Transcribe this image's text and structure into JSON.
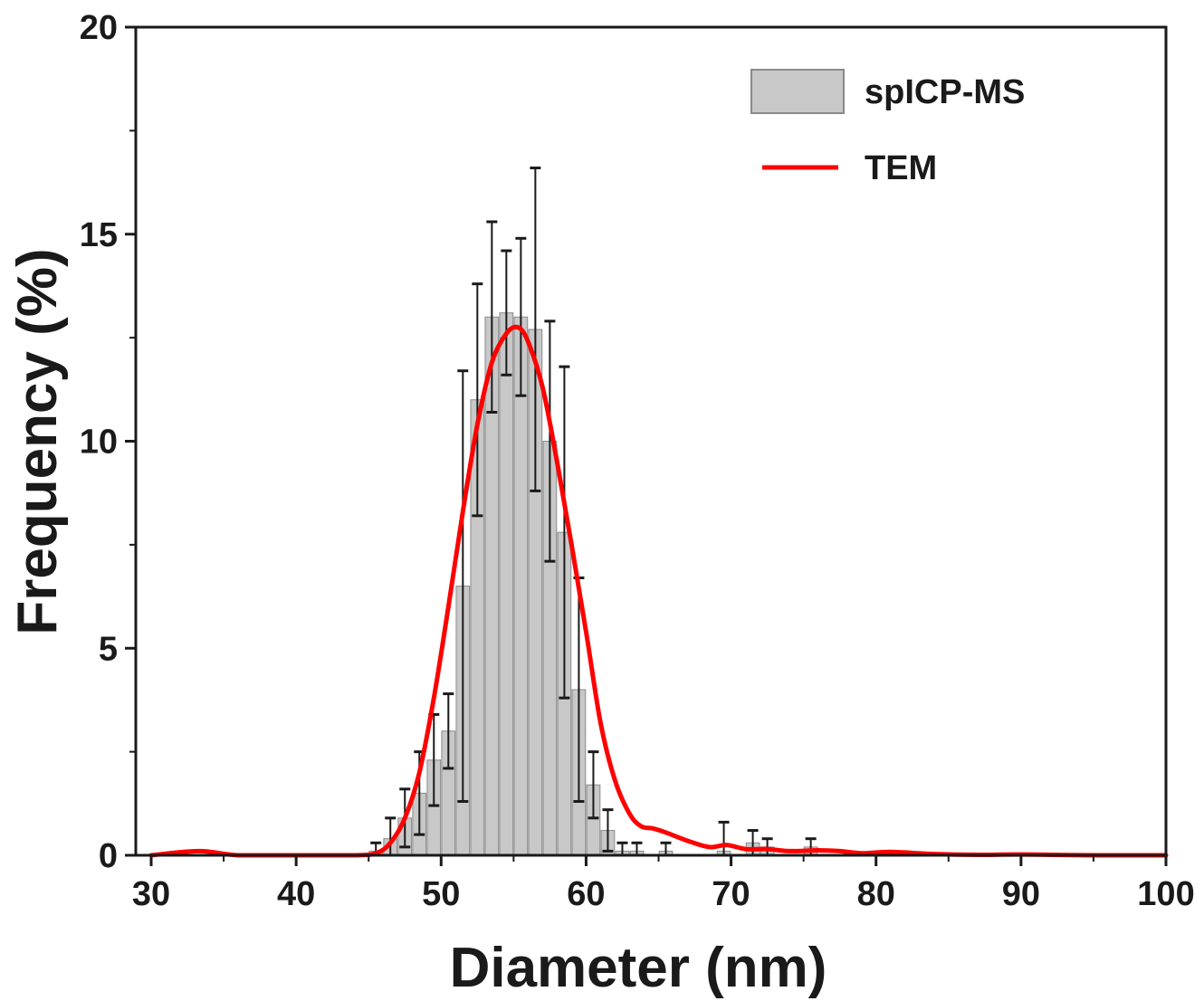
{
  "chart_data": {
    "type": "bar",
    "title": "",
    "xlabel": "Diameter (nm)",
    "ylabel": "Frequency (%)",
    "xlim": [
      30,
      100
    ],
    "ylim": [
      0,
      20
    ],
    "xticks": [
      30,
      40,
      50,
      60,
      70,
      80,
      90,
      100
    ],
    "yticks": [
      0,
      5,
      10,
      15,
      20
    ],
    "grid": false,
    "legend_position": "top-right",
    "colors": {
      "bars": "#c8c8c8",
      "bar_edge": "#8a8a8a",
      "line": "#ff0000",
      "axis": "#1a1a1a"
    },
    "series": [
      {
        "name": "spICP-MS",
        "kind": "histogram",
        "x": [
          45.5,
          46.5,
          47.5,
          48.5,
          49.5,
          50.5,
          51.5,
          52.5,
          53.5,
          54.5,
          55.5,
          56.5,
          57.5,
          58.5,
          59.5,
          60.5,
          61.5,
          62.5,
          63.5,
          65.5,
          69.5,
          71.5,
          72.5,
          75.5
        ],
        "values": [
          0.1,
          0.4,
          0.9,
          1.5,
          2.3,
          3.0,
          6.5,
          11.0,
          13.0,
          13.1,
          13.0,
          12.7,
          10.0,
          7.8,
          4.0,
          1.7,
          0.6,
          0.1,
          0.1,
          0.1,
          0.1,
          0.3,
          0.2,
          0.2
        ],
        "errors": [
          0.2,
          0.5,
          0.7,
          1.0,
          1.1,
          0.9,
          5.2,
          2.8,
          2.3,
          1.5,
          1.9,
          3.9,
          2.9,
          4.0,
          2.7,
          0.8,
          0.5,
          0.2,
          0.2,
          0.2,
          0.7,
          0.3,
          0.2,
          0.2
        ]
      },
      {
        "name": "TEM",
        "kind": "line",
        "x": [
          30,
          33.3,
          36,
          40,
          44,
          45.5,
          46.5,
          47.5,
          48.5,
          49.5,
          50.5,
          51.5,
          52.5,
          53.5,
          54.5,
          55.3,
          56,
          57,
          58,
          59,
          60,
          61,
          62,
          63,
          63.8,
          64.6,
          65.5,
          67,
          68.5,
          69.7,
          71,
          72.5,
          74,
          76,
          77.5,
          79,
          81,
          84,
          87,
          90,
          95,
          100
        ],
        "values": [
          0,
          0.1,
          0,
          0,
          0,
          0.05,
          0.3,
          0.9,
          2.0,
          3.8,
          6.0,
          8.3,
          10.4,
          11.9,
          12.6,
          12.75,
          12.4,
          11.3,
          9.5,
          7.5,
          5.4,
          3.2,
          1.8,
          1.0,
          0.7,
          0.65,
          0.55,
          0.35,
          0.2,
          0.25,
          0.15,
          0.15,
          0.1,
          0.12,
          0.1,
          0.05,
          0.08,
          0.03,
          0.01,
          0.02,
          0,
          0
        ]
      }
    ]
  }
}
